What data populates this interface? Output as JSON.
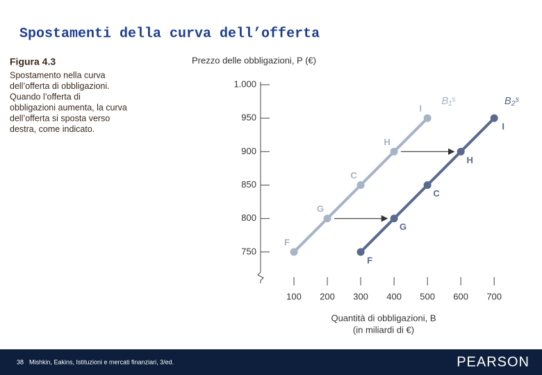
{
  "slide_title": "Spostamenti della curva dell’offerta",
  "figure": {
    "label": "Figura 4.3",
    "caption_lines": [
      "Spostamento nella curva",
      "dell’offerta di obbligazioni.",
      "Quando l’offerta di",
      "obbligazioni aumenta, la curva",
      "dell’offerta si sposta verso",
      "destra, come indicato."
    ]
  },
  "footer": {
    "page": "38",
    "source": "Mishkin, Eakins, Istituzioni e mercati finanziari, 3/ed.",
    "brand": "PEARSON"
  },
  "chart_data": {
    "type": "line",
    "y_label": "Prezzo delle obbligazioni, P (€)",
    "x_label": [
      "Quantità di obbligazioni, B",
      "(in miliardi di €)"
    ],
    "xlim": [
      0,
      760
    ],
    "xticks": [
      100,
      200,
      300,
      400,
      500,
      600,
      700
    ],
    "ylim": [
      700,
      1000
    ],
    "yticks": [
      {
        "value": 1000,
        "label": "1.000"
      },
      950,
      900,
      850,
      800,
      750
    ],
    "series": [
      {
        "name": "B₁ˢ",
        "color": "#a7b3c6",
        "x": [
          100,
          200,
          300,
          400,
          500
        ],
        "values": [
          750,
          800,
          850,
          900,
          950
        ],
        "point_labels": [
          "F",
          "G",
          "C",
          "H",
          "I"
        ]
      },
      {
        "name": "B₂ˢ",
        "color": "#596a8e",
        "x": [
          300,
          400,
          500,
          600,
          700
        ],
        "values": [
          750,
          800,
          850,
          900,
          950
        ],
        "point_labels": [
          "F",
          "G",
          "C",
          "H",
          "I"
        ]
      }
    ]
  }
}
